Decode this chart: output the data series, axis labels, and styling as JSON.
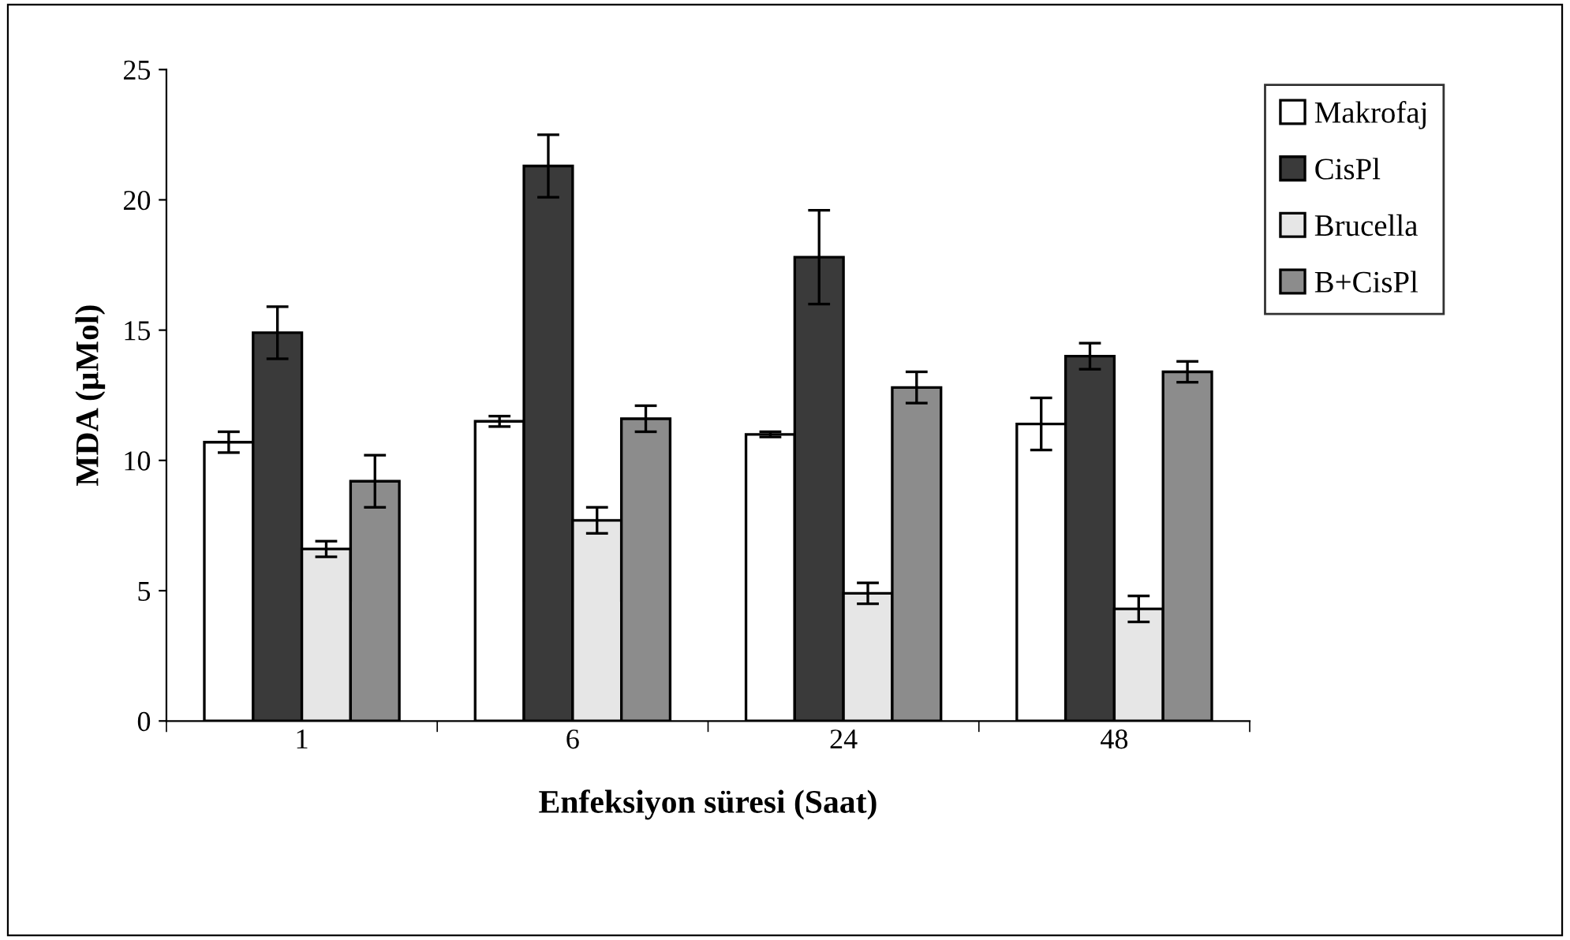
{
  "chart_data": {
    "type": "bar",
    "xlabel": "Enfeksiyon süresi (Saat)",
    "ylabel": "MDA (µMol)",
    "categories": [
      "1",
      "6",
      "24",
      "48"
    ],
    "series": [
      {
        "name": "Makrofaj",
        "color": "#ffffff",
        "values": [
          10.7,
          11.5,
          11.0,
          11.4
        ],
        "errors": [
          0.4,
          0.2,
          0.1,
          1.0
        ]
      },
      {
        "name": "CisPl",
        "color": "#3a3a3a",
        "values": [
          14.9,
          21.3,
          17.8,
          14.0
        ],
        "errors": [
          1.0,
          1.2,
          1.8,
          0.5
        ]
      },
      {
        "name": "Brucella",
        "color": "#e6e6e6",
        "values": [
          6.6,
          7.7,
          4.9,
          4.3
        ],
        "errors": [
          0.3,
          0.5,
          0.4,
          0.5
        ]
      },
      {
        "name": "B+CisPl",
        "color": "#8c8c8c",
        "values": [
          9.2,
          11.6,
          12.8,
          13.4
        ],
        "errors": [
          1.0,
          0.5,
          0.6,
          0.4
        ]
      }
    ],
    "ylim": [
      0,
      25
    ],
    "yticks": [
      0,
      5,
      10,
      15,
      20,
      25
    ],
    "grid": false,
    "legend": "top right"
  }
}
